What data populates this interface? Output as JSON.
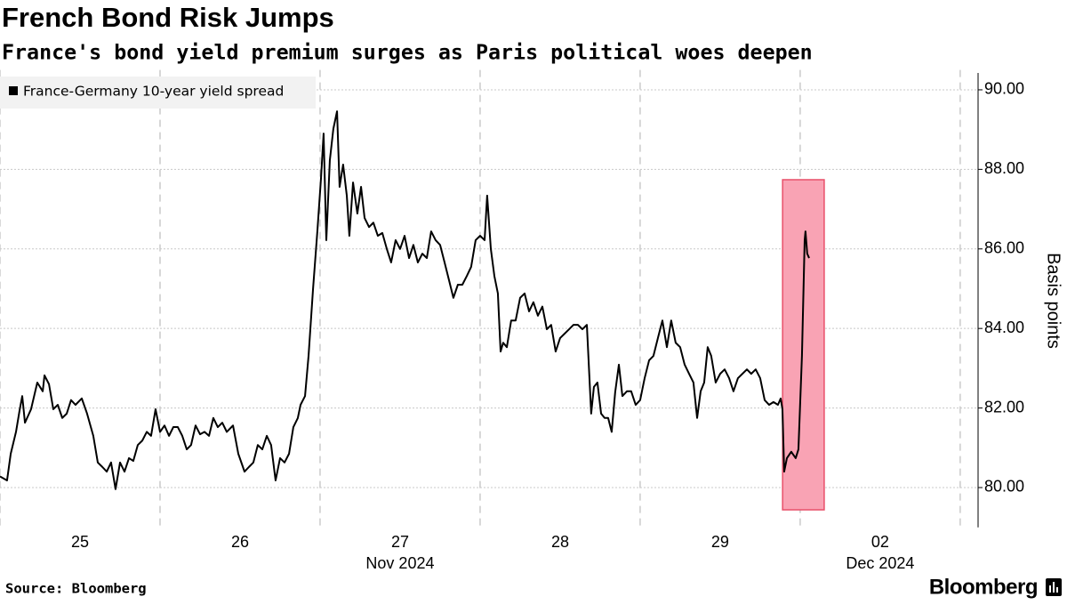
{
  "chart_data": {
    "type": "line",
    "title": "French Bond Risk Jumps",
    "subtitle": "France's bond yield premium surges as Paris political woes deepen",
    "y_axis_label": "Basis points",
    "source": "Source: Bloomberg",
    "logo": "Bloomberg",
    "xlim": [
      0,
      6.056
    ],
    "xticks": [
      {
        "value": 0.5,
        "label": "25"
      },
      {
        "value": 1.5,
        "label": "26"
      },
      {
        "value": 2.5,
        "label": "27"
      },
      {
        "value": 3.5,
        "label": "28"
      },
      {
        "value": 4.5,
        "label": "29"
      },
      {
        "value": 5.5,
        "label": "02"
      }
    ],
    "xticks_secondary": [
      {
        "value": 2.5,
        "label": "Nov 2024"
      },
      {
        "value": 5.5,
        "label": "Dec 2024"
      }
    ],
    "xgrid": [
      0,
      1,
      2,
      3,
      4,
      5,
      6
    ],
    "ylim": [
      79,
      90.5
    ],
    "yticks": [
      {
        "value": 80,
        "label": "80.00"
      },
      {
        "value": 82,
        "label": "82.00"
      },
      {
        "value": 84,
        "label": "84.00"
      },
      {
        "value": 86,
        "label": "86.00"
      },
      {
        "value": 88,
        "label": "88.00"
      },
      {
        "value": 90,
        "label": "90.00"
      }
    ],
    "grid": true,
    "legend": "top-left",
    "highlight": {
      "x": [
        4.89,
        5.15
      ],
      "y": [
        79.44,
        87.74
      ],
      "color": "#f9a3b4",
      "stroke": "#e8506a"
    },
    "x": [
      0,
      0.044,
      0.067,
      0.1,
      0.122,
      0.139,
      0.156,
      0.194,
      0.233,
      0.267,
      0.278,
      0.306,
      0.333,
      0.361,
      0.389,
      0.417,
      0.444,
      0.472,
      0.511,
      0.544,
      0.583,
      0.611,
      0.639,
      0.667,
      0.694,
      0.722,
      0.75,
      0.778,
      0.806,
      0.833,
      0.861,
      0.889,
      0.917,
      0.944,
      0.972,
      1,
      1.028,
      1.056,
      1.083,
      1.111,
      1.139,
      1.167,
      1.194,
      1.222,
      1.25,
      1.278,
      1.306,
      1.333,
      1.361,
      1.389,
      1.417,
      1.456,
      1.489,
      1.528,
      1.556,
      1.583,
      1.611,
      1.639,
      1.667,
      1.694,
      1.722,
      1.75,
      1.778,
      1.806,
      1.833,
      1.861,
      1.878,
      1.906,
      1.928,
      1.956,
      1.983,
      2.006,
      2.022,
      2.039,
      2.061,
      2.083,
      2.106,
      2.122,
      2.144,
      2.167,
      2.183,
      2.206,
      2.233,
      2.256,
      2.278,
      2.306,
      2.333,
      2.361,
      2.389,
      2.417,
      2.444,
      2.472,
      2.5,
      2.528,
      2.556,
      2.583,
      2.611,
      2.639,
      2.667,
      2.694,
      2.722,
      2.75,
      2.778,
      2.806,
      2.833,
      2.861,
      2.889,
      2.917,
      2.944,
      2.972,
      3,
      3.028,
      3.044,
      3.067,
      3.089,
      3.111,
      3.128,
      3.144,
      3.167,
      3.194,
      3.222,
      3.25,
      3.278,
      3.306,
      3.333,
      3.361,
      3.389,
      3.417,
      3.444,
      3.472,
      3.5,
      3.528,
      3.556,
      3.583,
      3.611,
      3.639,
      3.667,
      3.694,
      3.711,
      3.733,
      3.756,
      3.778,
      3.8,
      3.822,
      3.844,
      3.867,
      3.889,
      3.917,
      3.944,
      3.972,
      4,
      4.028,
      4.056,
      4.083,
      4.111,
      4.139,
      4.167,
      4.194,
      4.222,
      4.25,
      4.278,
      4.306,
      4.333,
      4.356,
      4.378,
      4.4,
      4.422,
      4.444,
      4.472,
      4.5,
      4.528,
      4.556,
      4.583,
      4.611,
      4.639,
      4.667,
      4.694,
      4.722,
      4.75,
      4.778,
      4.806,
      4.833,
      4.861,
      4.878,
      4.889,
      4.9,
      4.917,
      4.944,
      4.972,
      4.989,
      5.011,
      5.028,
      5.033,
      5.044,
      5.056
    ],
    "series": [
      {
        "name": "France-Germany 10-year yield spread",
        "color": "#000000",
        "values": [
          80.28,
          80.18,
          80.85,
          81.4,
          81.93,
          82.3,
          81.63,
          81.97,
          82.64,
          82.42,
          82.82,
          82.6,
          81.97,
          82.08,
          81.75,
          81.86,
          82.2,
          82.08,
          82.24,
          81.86,
          81.3,
          80.63,
          80.52,
          80.4,
          80.63,
          79.96,
          80.63,
          80.4,
          80.74,
          80.67,
          81.07,
          81.18,
          81.4,
          81.3,
          81.97,
          81.4,
          81.56,
          81.3,
          81.52,
          81.52,
          81.3,
          80.96,
          81.07,
          81.56,
          81.34,
          81.4,
          81.3,
          81.75,
          81.52,
          81.63,
          81.4,
          81.56,
          80.85,
          80.4,
          80.52,
          80.63,
          81.07,
          80.96,
          81.3,
          81.07,
          80.18,
          80.74,
          80.63,
          80.85,
          81.52,
          81.75,
          82.08,
          82.3,
          83.31,
          84.99,
          86.44,
          87.79,
          88.9,
          86.22,
          88.23,
          89.02,
          89.46,
          87.56,
          88.12,
          87.34,
          86.33,
          87.67,
          86.89,
          87.56,
          86.78,
          86.55,
          86.66,
          86.33,
          86.4,
          86.0,
          85.66,
          86.22,
          86.0,
          86.33,
          85.77,
          86.1,
          85.66,
          85.88,
          85.77,
          86.44,
          86.22,
          86.1,
          85.66,
          85.21,
          84.77,
          85.1,
          85.1,
          85.32,
          85.55,
          86.22,
          86.33,
          86.22,
          87.34,
          86.0,
          85.32,
          84.88,
          83.42,
          83.64,
          83.53,
          84.2,
          84.2,
          84.77,
          84.88,
          84.43,
          84.66,
          84.32,
          84.55,
          83.98,
          84.09,
          83.42,
          83.76,
          83.87,
          83.98,
          84.09,
          84.09,
          83.98,
          84.09,
          81.86,
          82.53,
          82.64,
          81.86,
          81.75,
          81.75,
          81.4,
          82.4,
          83.09,
          82.3,
          82.42,
          82.42,
          82.08,
          82.2,
          82.75,
          83.2,
          83.31,
          83.76,
          84.2,
          83.53,
          84.2,
          83.64,
          83.53,
          83.09,
          82.86,
          82.64,
          81.75,
          82.42,
          82.64,
          83.53,
          83.31,
          82.64,
          82.86,
          82.97,
          82.75,
          82.42,
          82.75,
          82.86,
          82.97,
          82.86,
          82.97,
          82.75,
          82.2,
          82.08,
          82.15,
          82.08,
          82.24,
          81.97,
          80.4,
          80.74,
          80.9,
          80.74,
          80.96,
          83.31,
          86.22,
          86.44,
          85.88,
          85.77
        ]
      }
    ]
  }
}
